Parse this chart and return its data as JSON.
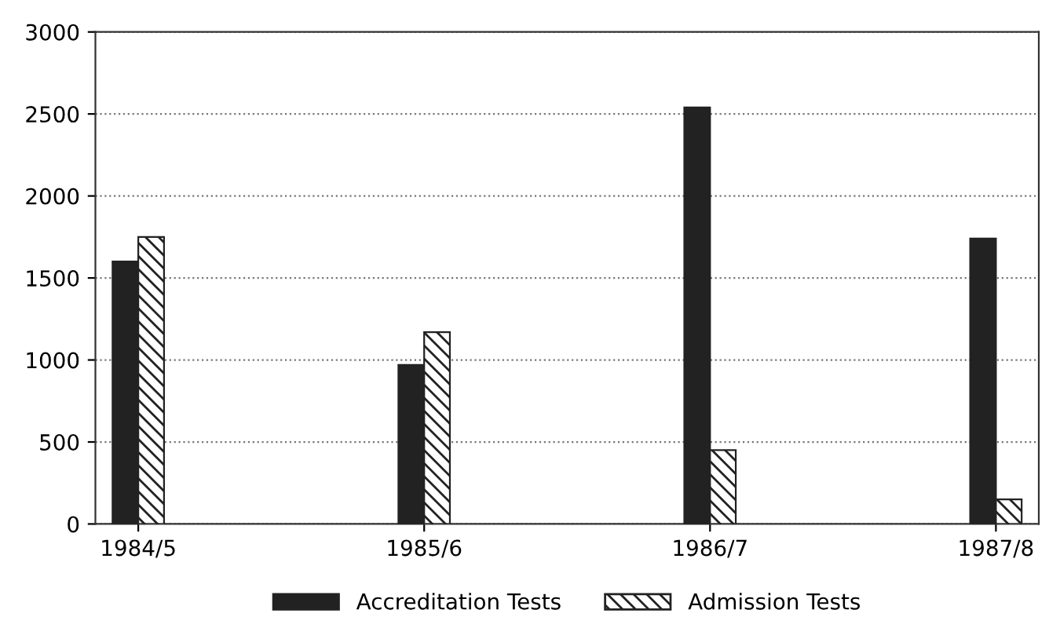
{
  "chart_data": {
    "type": "bar",
    "categories": [
      "1984/5",
      "1985/6",
      "1986/7",
      "1987/8"
    ],
    "series": [
      {
        "name": "Accreditation Tests",
        "color": "#222222",
        "values": [
          1600,
          970,
          2540,
          1740
        ]
      },
      {
        "name": "Admission Tests",
        "color": "#222222",
        "values": [
          1750,
          1170,
          450,
          150
        ]
      }
    ],
    "ylim": [
      0,
      3000
    ],
    "yticks": [
      0,
      500,
      1000,
      1500,
      2000,
      2500,
      3000
    ],
    "grid": "y",
    "legend": "bottom"
  }
}
